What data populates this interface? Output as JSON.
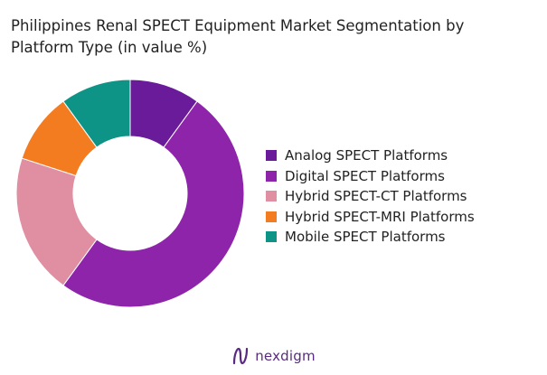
{
  "chart_data": {
    "type": "pie",
    "title_lines": [
      "Philippines Renal SPECT Equipment Market Segmentation by",
      "Platform Type (in value %)"
    ],
    "categories": [
      "Analog SPECT Platforms",
      "Digital SPECT Platforms",
      "Hybrid SPECT-CT Platforms",
      "Hybrid SPECT-MRI Platforms",
      "Mobile SPECT Platforms"
    ],
    "values": [
      10,
      50,
      20,
      10,
      10
    ],
    "colors": [
      "#6a1b9a",
      "#8e24aa",
      "#e08ea2",
      "#f47c20",
      "#0e9486"
    ],
    "donut": true,
    "legend_position": "right",
    "start_angle": "top",
    "direction": "clockwise"
  },
  "brand": {
    "name": "nexdigm"
  }
}
